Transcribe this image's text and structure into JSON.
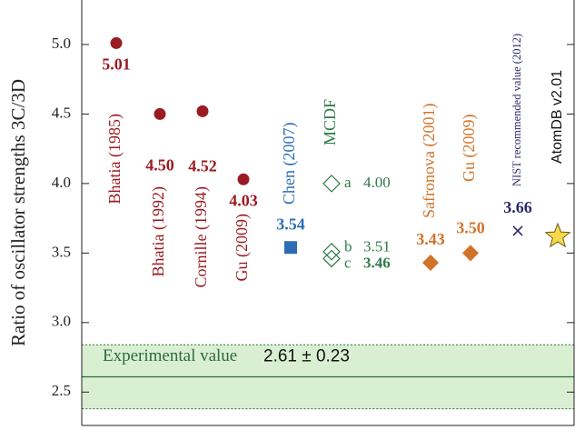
{
  "chart_data": {
    "type": "scatter",
    "y_label": "Ratio of oscillator strengths 3C/3D",
    "ylim": [
      2.26,
      5.32
    ],
    "yticks": [
      2.5,
      {
        "value": 3.0,
        "label": "3.0"
      },
      3.5,
      {
        "value": 4.0,
        "label": "4.0"
      },
      4.5,
      {
        "value": 5.0,
        "label": "5.0"
      }
    ],
    "series": [
      {
        "name": "Bhatia (1985)",
        "color": "#9b1b22",
        "marker": "circle",
        "values": [
          5.01
        ],
        "value_labels": [
          "5.01"
        ]
      },
      {
        "name": "Bhatia (1992)",
        "color": "#9b1b22",
        "marker": "circle",
        "values": [
          4.5
        ],
        "value_labels": [
          "4.50"
        ]
      },
      {
        "name": "Cornille (1994)",
        "color": "#9b1b22",
        "marker": "circle",
        "values": [
          4.52
        ],
        "value_labels": [
          "4.52"
        ]
      },
      {
        "name": "Gu (2009)",
        "color": "#9b1b22",
        "marker": "circle",
        "values": [
          4.03
        ],
        "value_labels": [
          "4.03"
        ]
      },
      {
        "name": "Chen (2007)",
        "color": "#2c6db5",
        "marker": "square",
        "values": [
          3.54
        ],
        "value_labels": [
          "3.54"
        ]
      },
      {
        "name": "MCDF",
        "color": "#2e7a4a",
        "marker": "open-diamond",
        "values": [
          4.0,
          3.51,
          3.46
        ],
        "point_labels": [
          "a",
          "b",
          "c"
        ],
        "value_labels": [
          "4.00",
          "3.51",
          "3.46"
        ]
      },
      {
        "name": "Safronova (2001)",
        "color": "#d2732a",
        "marker": "diamond",
        "values": [
          3.43
        ],
        "value_labels": [
          "3.43"
        ]
      },
      {
        "name": "Gu (2009)",
        "color": "#d2732a",
        "marker": "diamond",
        "values": [
          3.5
        ],
        "value_labels": [
          "3.50"
        ]
      },
      {
        "name": "NIST recommended value (2012)",
        "color": "#2b2a6b",
        "marker": "cross",
        "values": [
          3.66
        ],
        "value_labels": [
          "3.66"
        ]
      },
      {
        "name": "AtomDB v2.01",
        "color": "#f6d84a",
        "marker": "star",
        "values": [
          3.62
        ]
      }
    ],
    "experimental": {
      "label": "Experimental value",
      "value": 2.61,
      "error": 0.23,
      "value_label": "2.61 ± 0.23",
      "color": "#2e6b3a",
      "band_color": "#d9efd2"
    }
  }
}
